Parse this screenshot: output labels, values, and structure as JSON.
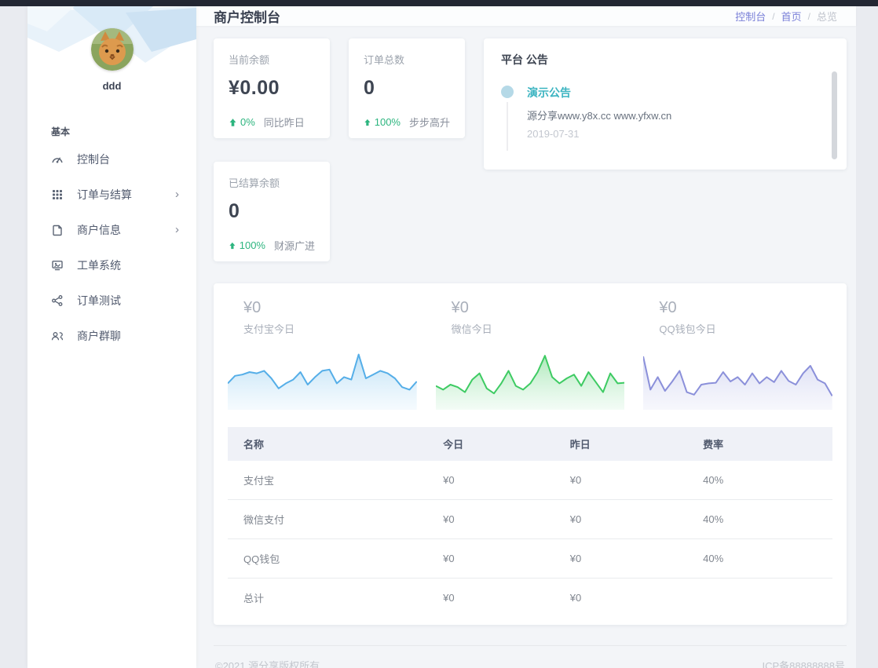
{
  "sidebar": {
    "username": "ddd",
    "section_label": "基本",
    "items": [
      {
        "label": "控制台",
        "icon": "gauge-icon",
        "has_children": false
      },
      {
        "label": "订单与结算",
        "icon": "grid-icon",
        "has_children": true
      },
      {
        "label": "商户信息",
        "icon": "document-icon",
        "has_children": true
      },
      {
        "label": "工单系统",
        "icon": "monitor-icon",
        "has_children": false
      },
      {
        "label": "订单测试",
        "icon": "share-icon",
        "has_children": false
      },
      {
        "label": "商户群聊",
        "icon": "users-icon",
        "has_children": false
      }
    ],
    "chevron_glyph": "›"
  },
  "header": {
    "title": "商户控制台",
    "breadcrumb": [
      {
        "label": "控制台",
        "link": true
      },
      {
        "label": "首页",
        "link": true
      },
      {
        "label": "总览",
        "link": false
      }
    ],
    "separator": "/"
  },
  "stats": [
    {
      "label": "当前余额",
      "value": "¥0.00",
      "trend_pct": "0%",
      "trend_note": "同比昨日"
    },
    {
      "label": "订单总数",
      "value": "0",
      "trend_pct": "100%",
      "trend_note": "步步高升"
    },
    {
      "label": "已结算余额",
      "value": "0",
      "trend_pct": "100%",
      "trend_note": "财源广进"
    }
  ],
  "announcement": {
    "title": "平台 公告",
    "items": [
      {
        "title": "演示公告",
        "content": "源分享www.y8x.cc www.yfxw.cn",
        "date": "2019-07-31"
      }
    ]
  },
  "chart_data": [
    {
      "type": "area",
      "title": "支付宝今日",
      "value_label": "¥0",
      "line_color": "#55aee8",
      "fill_top": "#b9def5",
      "fill_bottom": "#edf7fd",
      "note": "decorative sparkline, y normalized 0-100 top-down, no axes shown",
      "points": [
        58,
        46,
        44,
        40,
        42,
        38,
        50,
        66,
        58,
        52,
        40,
        60,
        48,
        38,
        36,
        58,
        48,
        52,
        12,
        50,
        44,
        38,
        42,
        50,
        64,
        68,
        55
      ]
    },
    {
      "type": "area",
      "title": "微信今日",
      "value_label": "¥0",
      "line_color": "#3ecb63",
      "fill_top": "#a8e7b6",
      "fill_bottom": "#e9f9ee",
      "note": "decorative sparkline, y normalized 0-100 top-down, no axes shown",
      "points": [
        62,
        68,
        60,
        64,
        72,
        52,
        42,
        66,
        74,
        58,
        38,
        62,
        68,
        58,
        40,
        14,
        48,
        58,
        50,
        44,
        62,
        40,
        56,
        72,
        42,
        58,
        57
      ]
    },
    {
      "type": "area",
      "title": "QQ钱包今日",
      "value_label": "¥0",
      "line_color": "#8b90da",
      "fill_top": "#d6d9f3",
      "fill_bottom": "#f0f1fa",
      "note": "decorative sparkline, y normalized 0-100 top-down, no axes shown",
      "points": [
        15,
        68,
        48,
        70,
        55,
        38,
        72,
        76,
        60,
        58,
        57,
        40,
        55,
        48,
        60,
        42,
        58,
        48,
        56,
        38,
        54,
        60,
        42,
        30,
        52,
        58,
        78
      ]
    }
  ],
  "table": {
    "columns": [
      "名称",
      "今日",
      "昨日",
      "费率"
    ],
    "rows": [
      [
        "支付宝",
        "¥0",
        "¥0",
        "40%"
      ],
      [
        "微信支付",
        "¥0",
        "¥0",
        "40%"
      ],
      [
        "QQ钱包",
        "¥0",
        "¥0",
        "40%"
      ],
      [
        "总计",
        "¥0",
        "¥0",
        ""
      ]
    ]
  },
  "footer": {
    "copyright": "©2021 源分享版权所有.",
    "icp": "ICP备88888888号"
  },
  "colors": {
    "trend_green": "#2db57f",
    "breadcrumb_link": "#7a80d8",
    "announce_link": "#3bb4c1",
    "topbar": "#232733"
  }
}
